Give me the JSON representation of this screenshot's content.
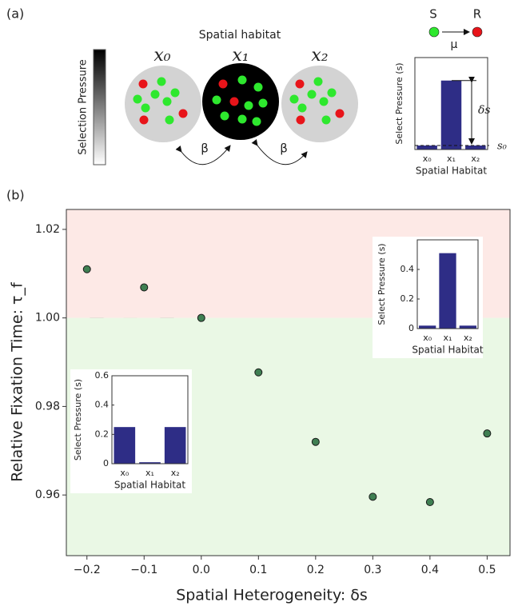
{
  "diagram": {
    "panel_labels": [
      "(a)",
      "(b)"
    ],
    "title": "Spatial habitat",
    "habitats": [
      "x₀",
      "x₁",
      "x₂"
    ],
    "colorbar_label": "Selection Pressure",
    "migration": [
      "β",
      "β"
    ],
    "mutation": {
      "from": "S",
      "to": "R",
      "rate": "μ"
    }
  },
  "chart_data": [
    {
      "type": "scatter",
      "x_label": "Spatial Heterogeneity: δs",
      "y_label": "Relative Fixation Time: τ_f",
      "x": [
        -0.2,
        -0.1,
        0.0,
        0.1,
        0.2,
        0.3,
        0.4,
        0.5
      ],
      "values": [
        1.011,
        1.0069,
        1.0,
        0.9877,
        0.972,
        0.9596,
        0.9584,
        0.9739
      ],
      "color": "#3f7f52",
      "xlim": [
        -0.236,
        0.54
      ],
      "ylim": [
        0.9463,
        1.0245
      ],
      "xticks": [
        {
          "value": -0.2,
          "label": "−0.2"
        },
        {
          "value": -0.1,
          "label": "−0.1"
        },
        {
          "value": 0,
          "label": "0.0"
        },
        0.1,
        0.2,
        0.3,
        0.4,
        0.5
      ],
      "yticks": [
        0.96,
        0.98,
        {
          "value": 1,
          "label": "1.00"
        },
        1.02
      ],
      "shade_split": 1.0,
      "shade_above_color": "#fde9e6",
      "shade_below_color": "#eaf8e5"
    },
    {
      "type": "bar",
      "y_label": "Select Pressure (s)",
      "x_label": "Spatial Habitat",
      "categories": [
        "x₀",
        "x₁",
        "x₂"
      ],
      "values": [
        0.02,
        0.51,
        0.02
      ],
      "color": "#2e2d86",
      "ylim": [
        0,
        0.6
      ],
      "yticks": [
        0,
        0.2,
        0.4
      ]
    },
    {
      "type": "bar",
      "y_label": "Select Pressure (s)",
      "x_label": "Spatial Habitat",
      "categories": [
        "x₀",
        "x₁",
        "x₂"
      ],
      "values": [
        0.25,
        0.01,
        0.25
      ],
      "color": "#2e2d86",
      "ylim": [
        0,
        0.6
      ],
      "yticks": [
        0,
        0.2,
        0.4,
        0.6
      ]
    },
    {
      "type": "bar",
      "y_label": "Select Pressure (s)",
      "x_label": "Spatial Habitat",
      "categories": [
        "x₀",
        "x₁",
        "x₂"
      ],
      "values": [
        0.026,
        0.45,
        0.026
      ],
      "color": "#2e2d86",
      "ylim": [
        0,
        0.6
      ],
      "annotations": [
        "δs",
        "s₀"
      ]
    }
  ]
}
